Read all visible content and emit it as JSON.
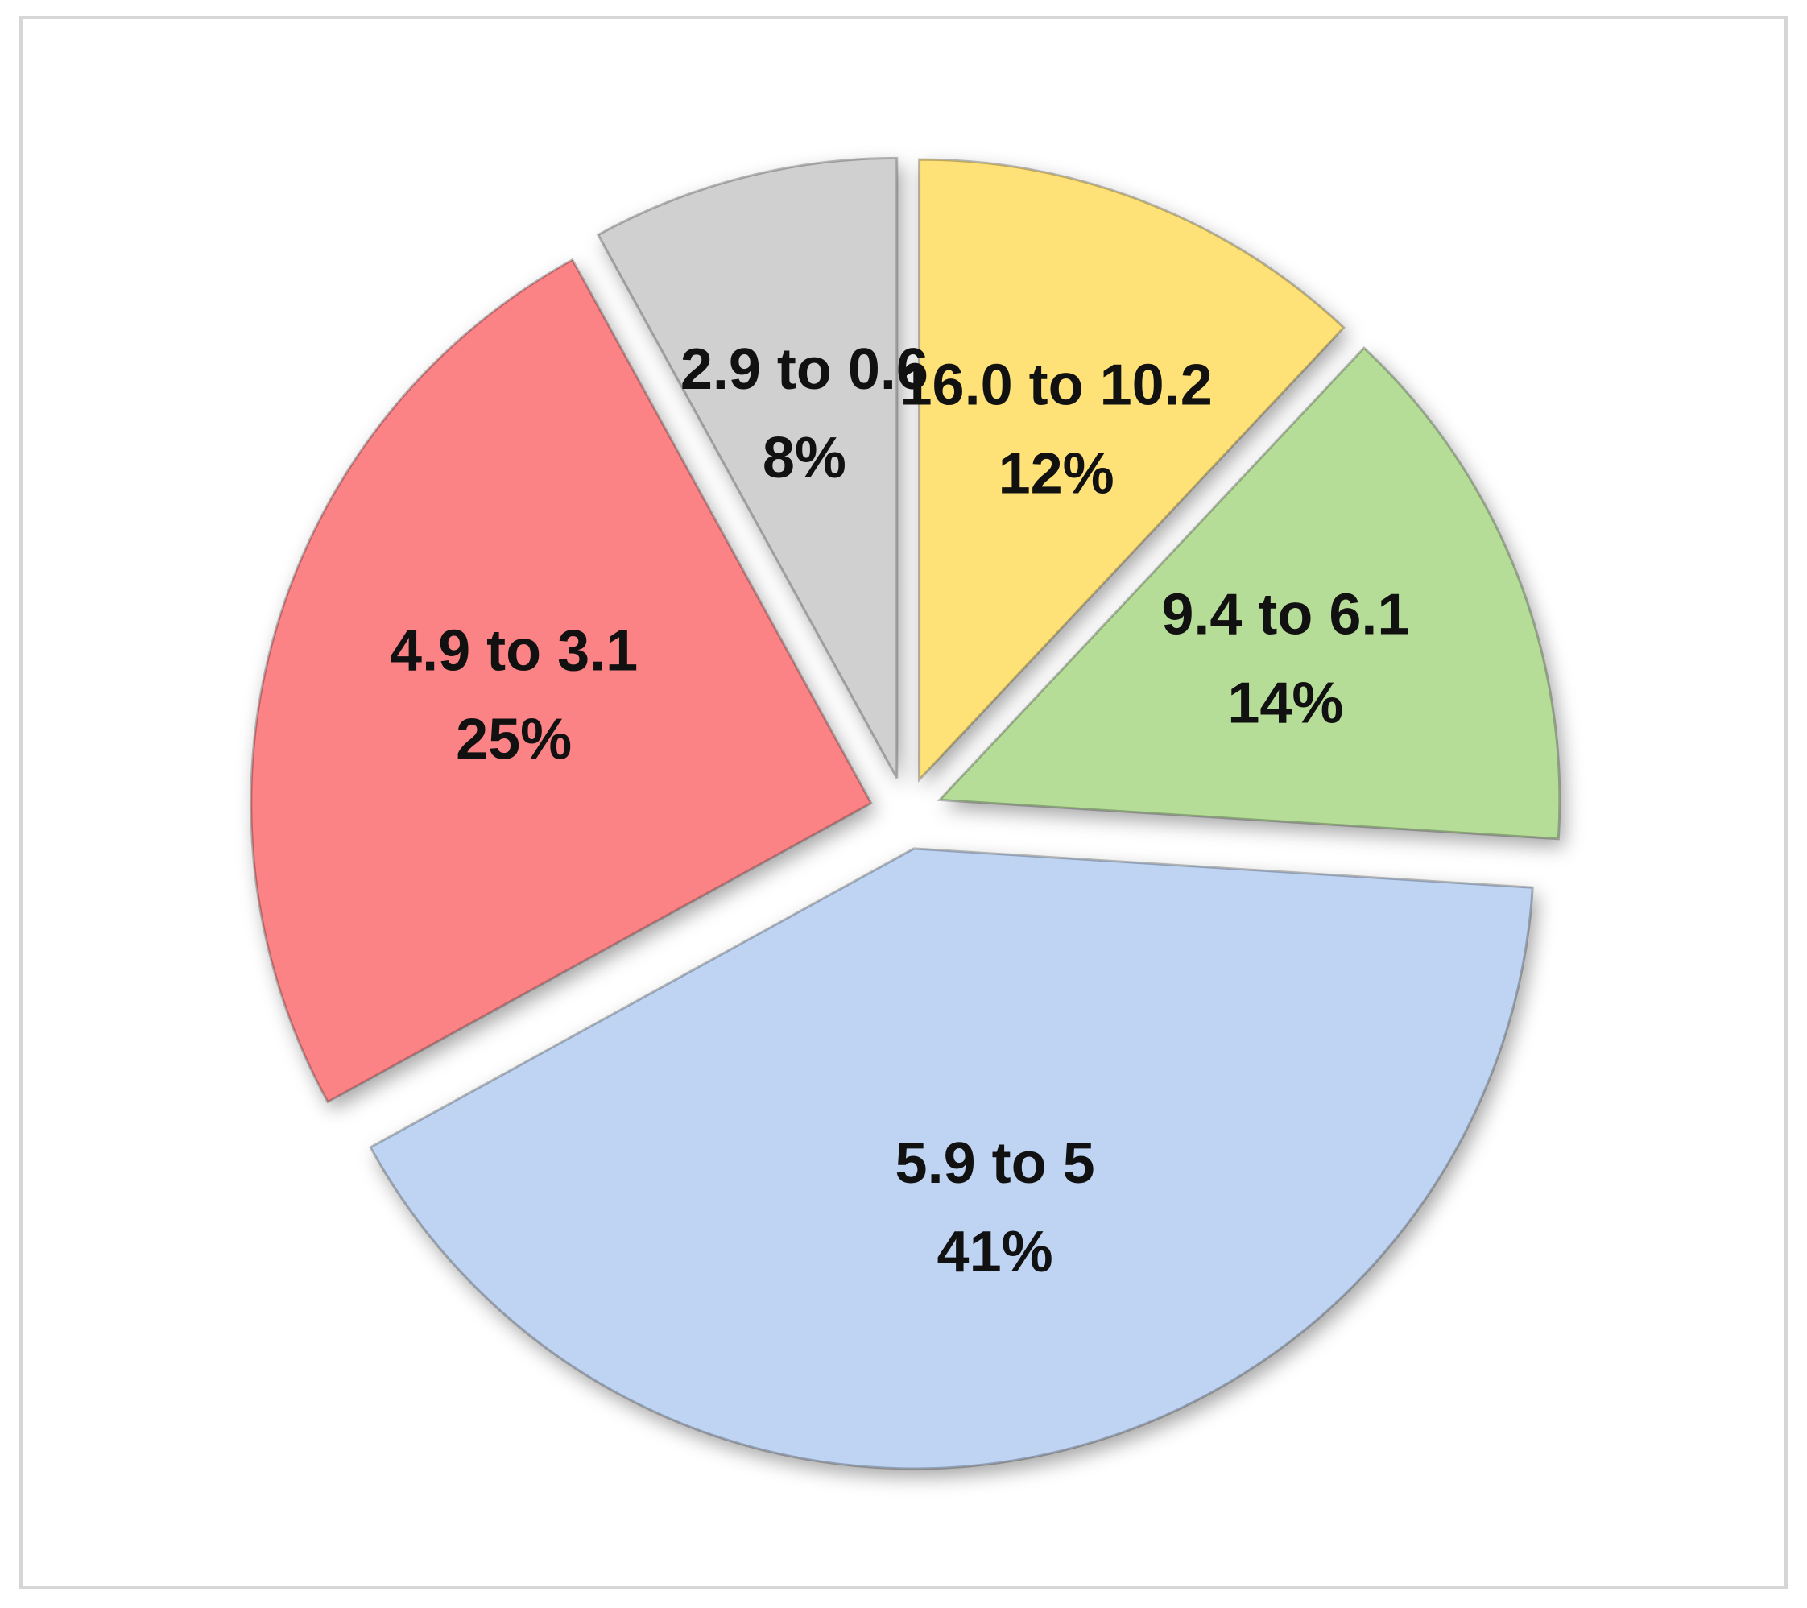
{
  "chart_data": {
    "type": "pie",
    "categories": [
      "16.0 to 10.2",
      "9.4 to 6.1",
      "5.9 to 5",
      "4.9 to 3.1",
      "2.9 to 0.6"
    ],
    "values": [
      12,
      14,
      41,
      25,
      8
    ],
    "value_labels": [
      "12%",
      "14%",
      "41%",
      "25%",
      "8%"
    ],
    "colors": [
      "#ffe277",
      "#b5dd98",
      "#bfd4f2",
      "#fb8285",
      "#d0d0d0"
    ]
  }
}
